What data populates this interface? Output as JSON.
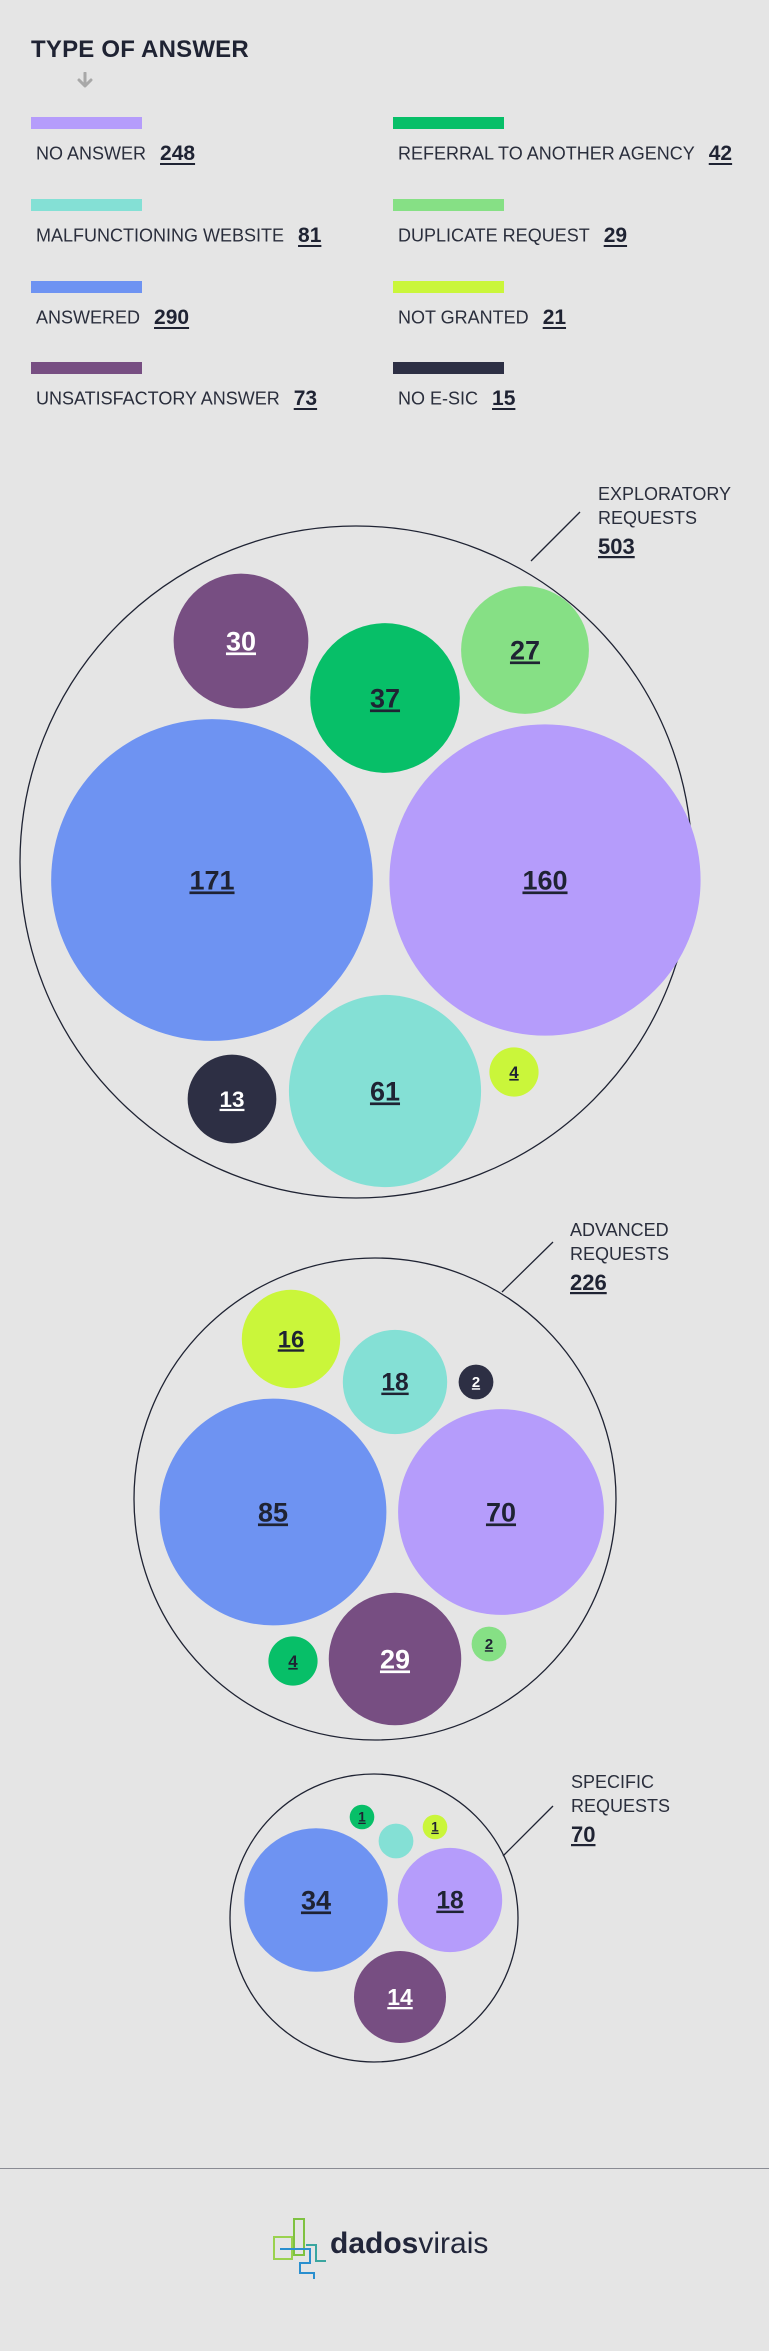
{
  "title": "TYPE OF ANSWER",
  "colors": {
    "no_answer": "#b59cfb",
    "malfunctioning_website": "#84e0d5",
    "answered": "#6e93f2",
    "unsatisfactory_answer": "#774e82",
    "referral": "#07bf68",
    "duplicate": "#86e085",
    "not_granted": "#caf63a",
    "no_esic": "#2d2f44"
  },
  "legend": [
    {
      "label": "NO ANSWER",
      "count": "248",
      "color_key": "no_answer"
    },
    {
      "label": "MALFUNCTIONING WEBSITE",
      "count": "81",
      "color_key": "malfunctioning_website"
    },
    {
      "label": "ANSWERED",
      "count": "290",
      "color_key": "answered"
    },
    {
      "label": "UNSATISFACTORY ANSWER",
      "count": "73",
      "color_key": "unsatisfactory_answer"
    },
    {
      "label": "REFERRAL TO ANOTHER AGENCY",
      "count": "42",
      "color_key": "referral"
    },
    {
      "label": "DUPLICATE REQUEST",
      "count": "29",
      "color_key": "duplicate"
    },
    {
      "label": "NOT GRANTED",
      "count": "21",
      "color_key": "not_granted"
    },
    {
      "label": "NO E-SIC",
      "count": "15",
      "color_key": "no_esic"
    }
  ],
  "chart_data": {
    "type": "packed-bubble",
    "title": "TYPE OF ANSWER",
    "groups": [
      {
        "label_lines": [
          "EXPLORATORY",
          "REQUESTS"
        ],
        "total": 503,
        "bubbles": [
          {
            "category": "ANSWERED",
            "value": 171,
            "color_key": "answered"
          },
          {
            "category": "NO ANSWER",
            "value": 160,
            "color_key": "no_answer"
          },
          {
            "category": "MALFUNCTIONING WEBSITE",
            "value": 61,
            "color_key": "malfunctioning_website"
          },
          {
            "category": "REFERRAL TO ANOTHER AGENCY",
            "value": 37,
            "color_key": "referral"
          },
          {
            "category": "UNSATISFACTORY ANSWER",
            "value": 30,
            "color_key": "unsatisfactory_answer"
          },
          {
            "category": "DUPLICATE REQUEST",
            "value": 27,
            "color_key": "duplicate"
          },
          {
            "category": "NO E-SIC",
            "value": 13,
            "color_key": "no_esic"
          },
          {
            "category": "NOT GRANTED",
            "value": 4,
            "color_key": "not_granted"
          }
        ]
      },
      {
        "label_lines": [
          "ADVANCED",
          "REQUESTS"
        ],
        "total": 226,
        "bubbles": [
          {
            "category": "ANSWERED",
            "value": 85,
            "color_key": "answered"
          },
          {
            "category": "NO ANSWER",
            "value": 70,
            "color_key": "no_answer"
          },
          {
            "category": "UNSATISFACTORY ANSWER",
            "value": 29,
            "color_key": "unsatisfactory_answer"
          },
          {
            "category": "MALFUNCTIONING WEBSITE",
            "value": 18,
            "color_key": "malfunctioning_website"
          },
          {
            "category": "NOT GRANTED",
            "value": 16,
            "color_key": "not_granted"
          },
          {
            "category": "REFERRAL TO ANOTHER AGENCY",
            "value": 4,
            "color_key": "referral"
          },
          {
            "category": "NO E-SIC",
            "value": 2,
            "color_key": "no_esic"
          },
          {
            "category": "DUPLICATE REQUEST",
            "value": 2,
            "color_key": "duplicate"
          }
        ]
      },
      {
        "label_lines": [
          "SPECIFIC",
          "REQUESTS"
        ],
        "total": 70,
        "bubbles": [
          {
            "category": "ANSWERED",
            "value": 34,
            "color_key": "answered"
          },
          {
            "category": "NO ANSWER",
            "value": 18,
            "color_key": "no_answer"
          },
          {
            "category": "UNSATISFACTORY ANSWER",
            "value": 14,
            "color_key": "unsatisfactory_answer"
          },
          {
            "category": "MALFUNCTIONING WEBSITE",
            "value": 2,
            "color_key": "malfunctioning_website",
            "unlabeled": true
          },
          {
            "category": "REFERRAL TO ANOTHER AGENCY",
            "value": 1,
            "color_key": "referral"
          },
          {
            "category": "NOT GRANTED",
            "value": 1,
            "color_key": "not_granted"
          }
        ]
      }
    ]
  },
  "footer": {
    "logo_bold": "dados",
    "logo_regular": "virais"
  }
}
